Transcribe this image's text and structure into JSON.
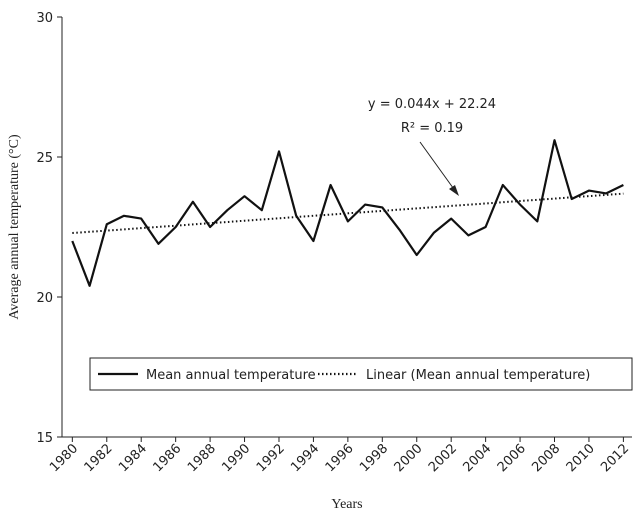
{
  "chart_data": {
    "type": "line",
    "x": [
      1980,
      1981,
      1982,
      1983,
      1984,
      1985,
      1986,
      1987,
      1988,
      1989,
      1990,
      1991,
      1992,
      1993,
      1994,
      1995,
      1996,
      1997,
      1998,
      1999,
      2000,
      2001,
      2002,
      2003,
      2004,
      2005,
      2006,
      2007,
      2008,
      2009,
      2010,
      2011,
      2012
    ],
    "series": [
      {
        "name": "Mean annual temperature",
        "color": "#111111",
        "style": "solid",
        "values": [
          22.0,
          20.4,
          22.6,
          22.9,
          22.8,
          21.9,
          22.5,
          23.4,
          22.5,
          23.1,
          23.6,
          23.1,
          25.2,
          22.9,
          22.0,
          24.0,
          22.7,
          23.3,
          23.2,
          22.4,
          21.5,
          22.3,
          22.8,
          22.2,
          22.5,
          24.0,
          23.3,
          22.7,
          25.6,
          23.5,
          23.8,
          23.7,
          24.0
        ]
      },
      {
        "name": "Linear (Mean annual temperature)",
        "color": "#111111",
        "style": "dotted",
        "values": [
          22.284,
          22.328,
          22.372,
          22.416,
          22.46,
          22.504,
          22.548,
          22.592,
          22.636,
          22.68,
          22.724,
          22.768,
          22.812,
          22.856,
          22.9,
          22.944,
          22.988,
          23.032,
          23.076,
          23.12,
          23.164,
          23.208,
          23.252,
          23.296,
          23.34,
          23.384,
          23.428,
          23.472,
          23.516,
          23.56,
          23.604,
          23.648,
          23.692
        ]
      }
    ],
    "xlim": [
      1979.4,
      2012.5
    ],
    "xticks": [
      1980,
      1982,
      1984,
      1986,
      1988,
      1990,
      1992,
      1994,
      1996,
      1998,
      2000,
      2002,
      2004,
      2006,
      2008,
      2010,
      2012
    ],
    "ylim": [
      15,
      30
    ],
    "yticks": [
      15,
      20,
      25,
      30
    ],
    "x_label": "Years",
    "y_label": "Average annual temperature (°C)",
    "annotations": [
      "y = 0.044x + 22.24",
      "R² = 0.19"
    ]
  }
}
